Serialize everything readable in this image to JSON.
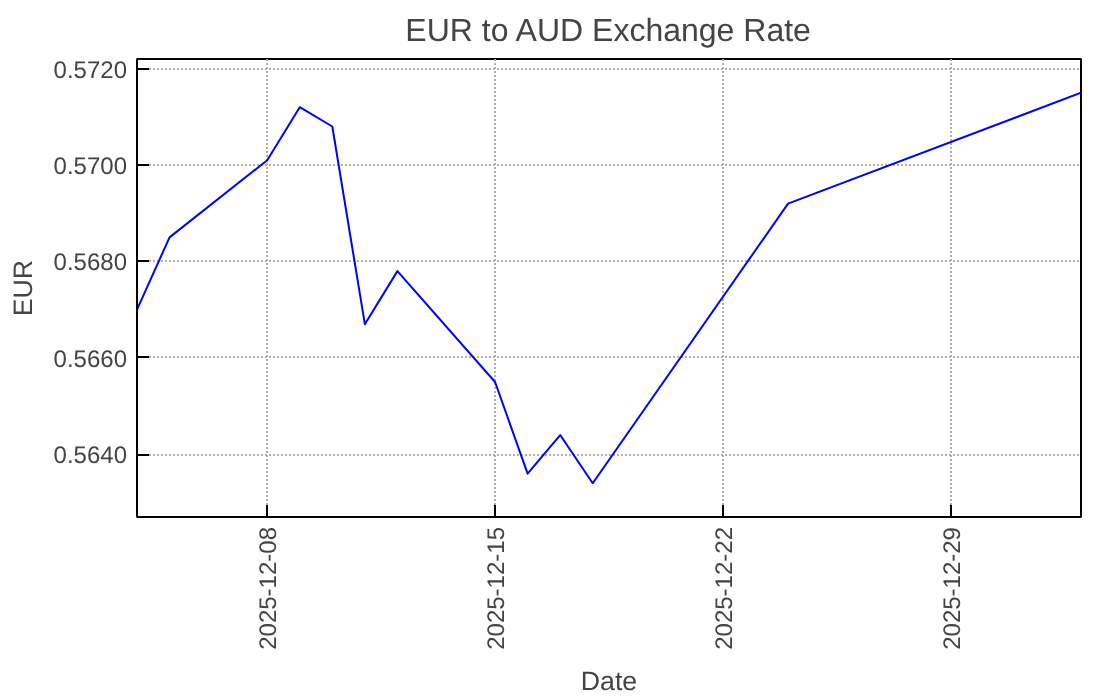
{
  "chart_data": {
    "type": "line",
    "title": "EUR to AUD Exchange Rate",
    "xlabel": "Date",
    "ylabel": "EUR",
    "x": [
      "2025-12-04",
      "2025-12-05",
      "2025-12-08",
      "2025-12-09",
      "2025-12-10",
      "2025-12-11",
      "2025-12-12",
      "2025-12-15",
      "2025-12-16",
      "2025-12-17",
      "2025-12-18",
      "2025-12-24",
      "2026-01-02"
    ],
    "series": [
      {
        "color": "#0000ff",
        "values": [
          0.567,
          0.5685,
          0.5701,
          0.5712,
          0.5708,
          0.5667,
          0.5678,
          0.5655,
          0.5636,
          0.5644,
          0.5634,
          0.5692,
          0.5715
        ]
      }
    ],
    "xlim": [
      "2025-12-04",
      "2026-01-02"
    ],
    "xticks": [
      "2025-12-08",
      "2025-12-15",
      "2025-12-22",
      "2025-12-29"
    ],
    "ylim": [
      0.5627,
      0.5722
    ],
    "yticks": [
      {
        "value": 0.564,
        "label": "0.5640"
      },
      {
        "value": 0.566,
        "label": "0.5660"
      },
      {
        "value": 0.568,
        "label": "0.5680"
      },
      {
        "value": 0.57,
        "label": "0.5700"
      },
      {
        "value": 0.572,
        "label": "0.5720"
      }
    ],
    "grid": true,
    "marker": "none",
    "line_style": "solid"
  }
}
